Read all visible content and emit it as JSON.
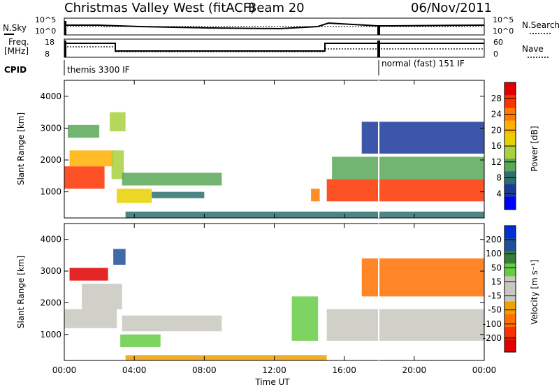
{
  "header": {
    "title": "Christmas Valley West (fitACF)",
    "beam": "Beam 20",
    "date": "06/Nov/2011"
  },
  "strips": {
    "nsky_label": "N.Sky",
    "nsky_ticks": [
      "10^5",
      "10^0"
    ],
    "nsearch_label": "N.Search",
    "nsearch_ticks": [
      "10^5",
      "10^0"
    ],
    "freq_label_line1": "Freq.",
    "freq_label_line2": "[MHz]",
    "freq_ticks": [
      "18",
      "8"
    ],
    "nave_label": "Nave",
    "nave_ticks": [
      "60",
      "0"
    ],
    "cpid_label": "CPID",
    "cpid_segments": [
      {
        "label": "themis 3300 IF",
        "start_h": 0,
        "end_h": 18.0
      },
      {
        "label": "normal (fast) 151 IF",
        "start_h": 18.0,
        "end_h": 24
      }
    ]
  },
  "panels": [
    {
      "ylabel": "Slant Range [km]",
      "colorbar": {
        "label": "Power [dB]",
        "ticks": [
          "28",
          "24",
          "20",
          "16",
          "12",
          "8",
          "4"
        ],
        "colors": [
          "#e00000",
          "#ff3300",
          "#ff7a00",
          "#ffb000",
          "#e8d000",
          "#a8d040",
          "#58a858",
          "#2e6e6e",
          "#1a3a9a",
          "#0000ff"
        ]
      }
    },
    {
      "ylabel": "Slant Range [km]",
      "colorbar": {
        "label": "Velocity [m s⁻¹]",
        "ticks": [
          "200",
          "100",
          "50",
          "15",
          "-15",
          "-50",
          "-100",
          "-200"
        ],
        "colors": [
          "#0030d0",
          "#20509a",
          "#3a7a3a",
          "#66cc44",
          "#c8c8c0",
          "#c8c8c0",
          "#f0a000",
          "#ff7000",
          "#ff3000",
          "#e00000"
        ]
      }
    }
  ],
  "xaxis": {
    "label": "Time UT",
    "ticks": [
      "00:00",
      "04:00",
      "08:00",
      "12:00",
      "16:00",
      "20:00",
      "00:00"
    ]
  },
  "chart_data": [
    {
      "type": "heatmap",
      "title": "Power [dB]",
      "xlabel": "Time UT",
      "ylabel": "Slant Range [km]",
      "xlim": [
        0,
        24
      ],
      "ylim": [
        180,
        4500
      ],
      "yticks": [
        1000,
        2000,
        3000,
        4000
      ],
      "blobs": [
        {
          "t0": 0.0,
          "t1": 2.3,
          "r0": 1100,
          "r1": 1800,
          "value": 28
        },
        {
          "t0": 0.3,
          "t1": 2.8,
          "r0": 1800,
          "r1": 2300,
          "value": 20
        },
        {
          "t0": 0.2,
          "t1": 2.0,
          "r0": 2700,
          "r1": 3100,
          "value": 12
        },
        {
          "t0": 2.6,
          "t1": 3.5,
          "r0": 2900,
          "r1": 3500,
          "value": 16
        },
        {
          "t0": 2.7,
          "t1": 3.4,
          "r0": 1400,
          "r1": 2300,
          "value": 14
        },
        {
          "t0": 3.3,
          "t1": 9.0,
          "r0": 1200,
          "r1": 1600,
          "value": 12
        },
        {
          "t0": 3.0,
          "t1": 5.0,
          "r0": 650,
          "r1": 1100,
          "value": 18
        },
        {
          "t0": 5.0,
          "t1": 8.0,
          "r0": 800,
          "r1": 1000,
          "value": 8
        },
        {
          "t0": 3.5,
          "t1": 24.0,
          "r0": 180,
          "r1": 380,
          "value": 8
        },
        {
          "t0": 14.1,
          "t1": 14.6,
          "r0": 700,
          "r1": 1100,
          "value": 24
        },
        {
          "t0": 15.0,
          "t1": 24.0,
          "r0": 700,
          "r1": 1400,
          "value": 28
        },
        {
          "t0": 15.3,
          "t1": 24.0,
          "r0": 1400,
          "r1": 2100,
          "value": 12
        },
        {
          "t0": 17.0,
          "t1": 24.0,
          "r0": 2200,
          "r1": 3200,
          "value": 4
        }
      ]
    },
    {
      "type": "heatmap",
      "title": "Velocity [m s⁻¹]",
      "xlabel": "Time UT",
      "ylabel": "Slant Range [km]",
      "xlim": [
        0,
        24
      ],
      "ylim": [
        180,
        4500
      ],
      "yticks": [
        1000,
        2000,
        3000,
        4000
      ],
      "blobs": [
        {
          "t0": 0.0,
          "t1": 3.0,
          "r0": 1200,
          "r1": 1800,
          "value": 0
        },
        {
          "t0": 1.0,
          "t1": 3.3,
          "r0": 1800,
          "r1": 2600,
          "value": 0
        },
        {
          "t0": 0.3,
          "t1": 2.5,
          "r0": 2700,
          "r1": 3100,
          "value": -150
        },
        {
          "t0": 2.8,
          "t1": 3.5,
          "r0": 3200,
          "r1": 3700,
          "value": 150
        },
        {
          "t0": 3.3,
          "t1": 9.0,
          "r0": 1100,
          "r1": 1600,
          "value": 0
        },
        {
          "t0": 3.2,
          "t1": 5.5,
          "r0": 600,
          "r1": 1000,
          "value": 40
        },
        {
          "t0": 3.5,
          "t1": 15.0,
          "r0": 180,
          "r1": 350,
          "value": -40
        },
        {
          "t0": 13.0,
          "t1": 14.5,
          "r0": 800,
          "r1": 2200,
          "value": 40
        },
        {
          "t0": 15.0,
          "t1": 24.0,
          "r0": 800,
          "r1": 1800,
          "value": 0
        },
        {
          "t0": 17.0,
          "t1": 24.0,
          "r0": 2200,
          "r1": 3400,
          "value": -60
        }
      ]
    }
  ]
}
